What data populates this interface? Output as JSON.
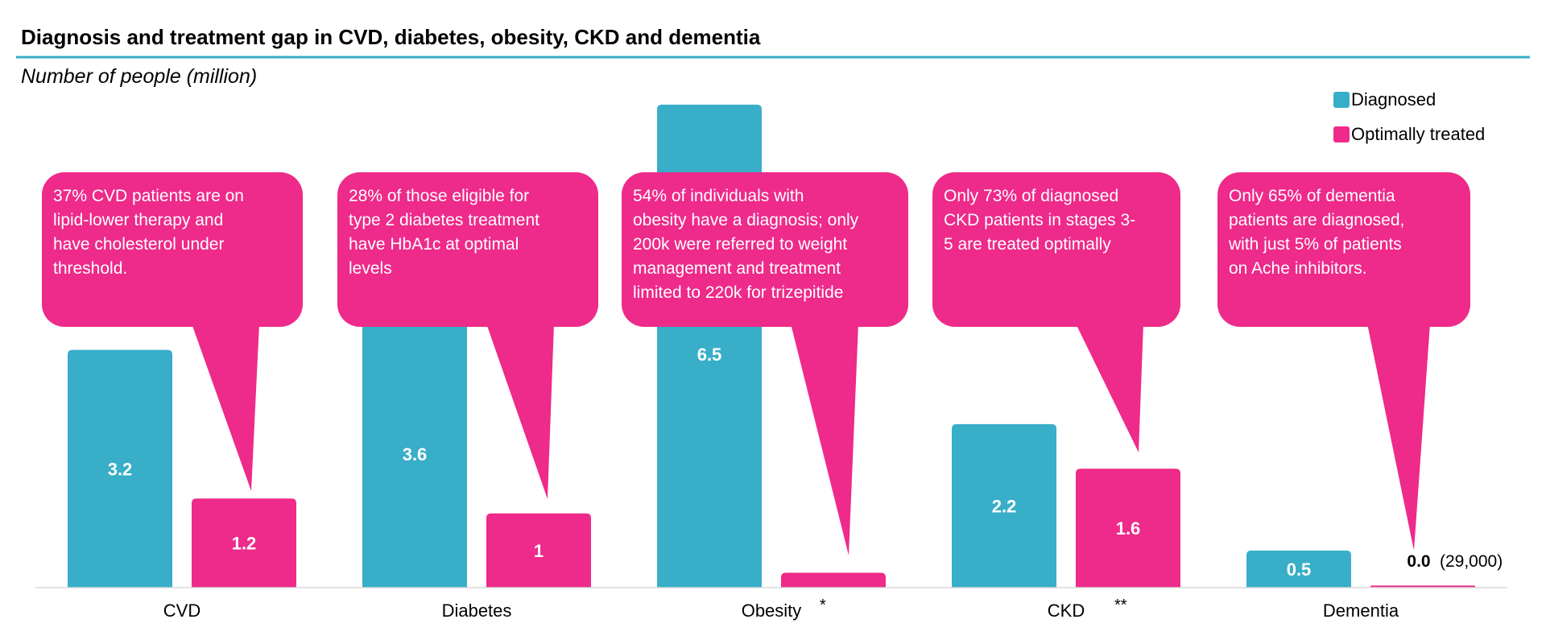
{
  "chart_data": {
    "type": "bar",
    "title": "Diagnosis and treatment gap in CVD, diabetes, obesity, CKD and dementia",
    "subtitle": "Number of people (million)",
    "categories": [
      "CVD",
      "Diabetes",
      "Obesity",
      "CKD",
      "Dementia"
    ],
    "category_marks": [
      "",
      "",
      "*",
      "**",
      ""
    ],
    "series": [
      {
        "name": "Diagnosed",
        "color": "#38AEC8",
        "values": [
          3.2,
          3.6,
          6.5,
          2.2,
          0.5
        ],
        "labels": [
          "3.2",
          "3.6",
          "6.5",
          "2.2",
          "0.5"
        ]
      },
      {
        "name": "Optimally treated",
        "color": "#EE2A8A",
        "values": [
          1.2,
          1,
          0.2,
          1.6,
          0.029
        ],
        "labels": [
          "1.2",
          "1",
          "",
          "1.6",
          "0.0"
        ]
      }
    ],
    "extra_labels": [
      "",
      "",
      "",
      "",
      "(29,000)"
    ],
    "ylim": [
      0,
      6.5
    ],
    "legend_position": "top-right",
    "grid": false,
    "callouts": [
      "37% CVD patients are on lipid-lower therapy and have cholesterol under threshold.",
      "28% of those eligible for type 2 diabetes treatment have HbA1c at optimal levels",
      "54% of individuals with obesity have a diagnosis; only 200k were referred to weight management and treatment limited to 220k for trizepitide",
      "Only 73% of diagnosed CKD patients in stages 3-5 are treated optimally",
      "Only 65% of dementia patients are diagnosed, with just 5% of patients on Ache inhibitors."
    ]
  }
}
